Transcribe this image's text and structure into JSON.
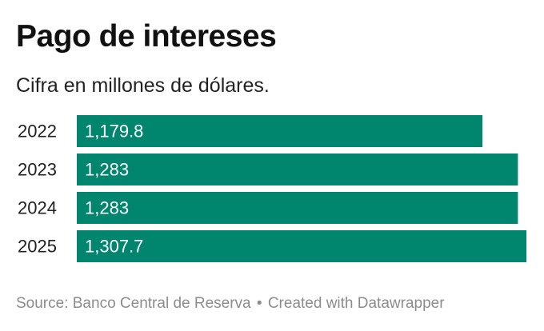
{
  "title": "Pago de intereses",
  "subtitle": "Cifra en millones de dólares.",
  "footer": {
    "source": "Source: Banco Central de Reserva",
    "separator": "•",
    "credit": "Created with Datawrapper"
  },
  "colors": {
    "bar": "#00866e",
    "bar_label": "#ffffff",
    "category_label": "#222222"
  },
  "chart_data": {
    "type": "bar",
    "orientation": "horizontal",
    "categories": [
      "2022",
      "2023",
      "2024",
      "2025"
    ],
    "values": [
      1179.8,
      1283,
      1283,
      1307.7
    ],
    "value_labels": [
      "1,179.8",
      "1,283",
      "1,283",
      "1,307.7"
    ],
    "title": "Pago de intereses",
    "subtitle": "Cifra en millones de dólares.",
    "xlim": [
      0,
      1307.7
    ],
    "grid": false,
    "legend": "none"
  }
}
